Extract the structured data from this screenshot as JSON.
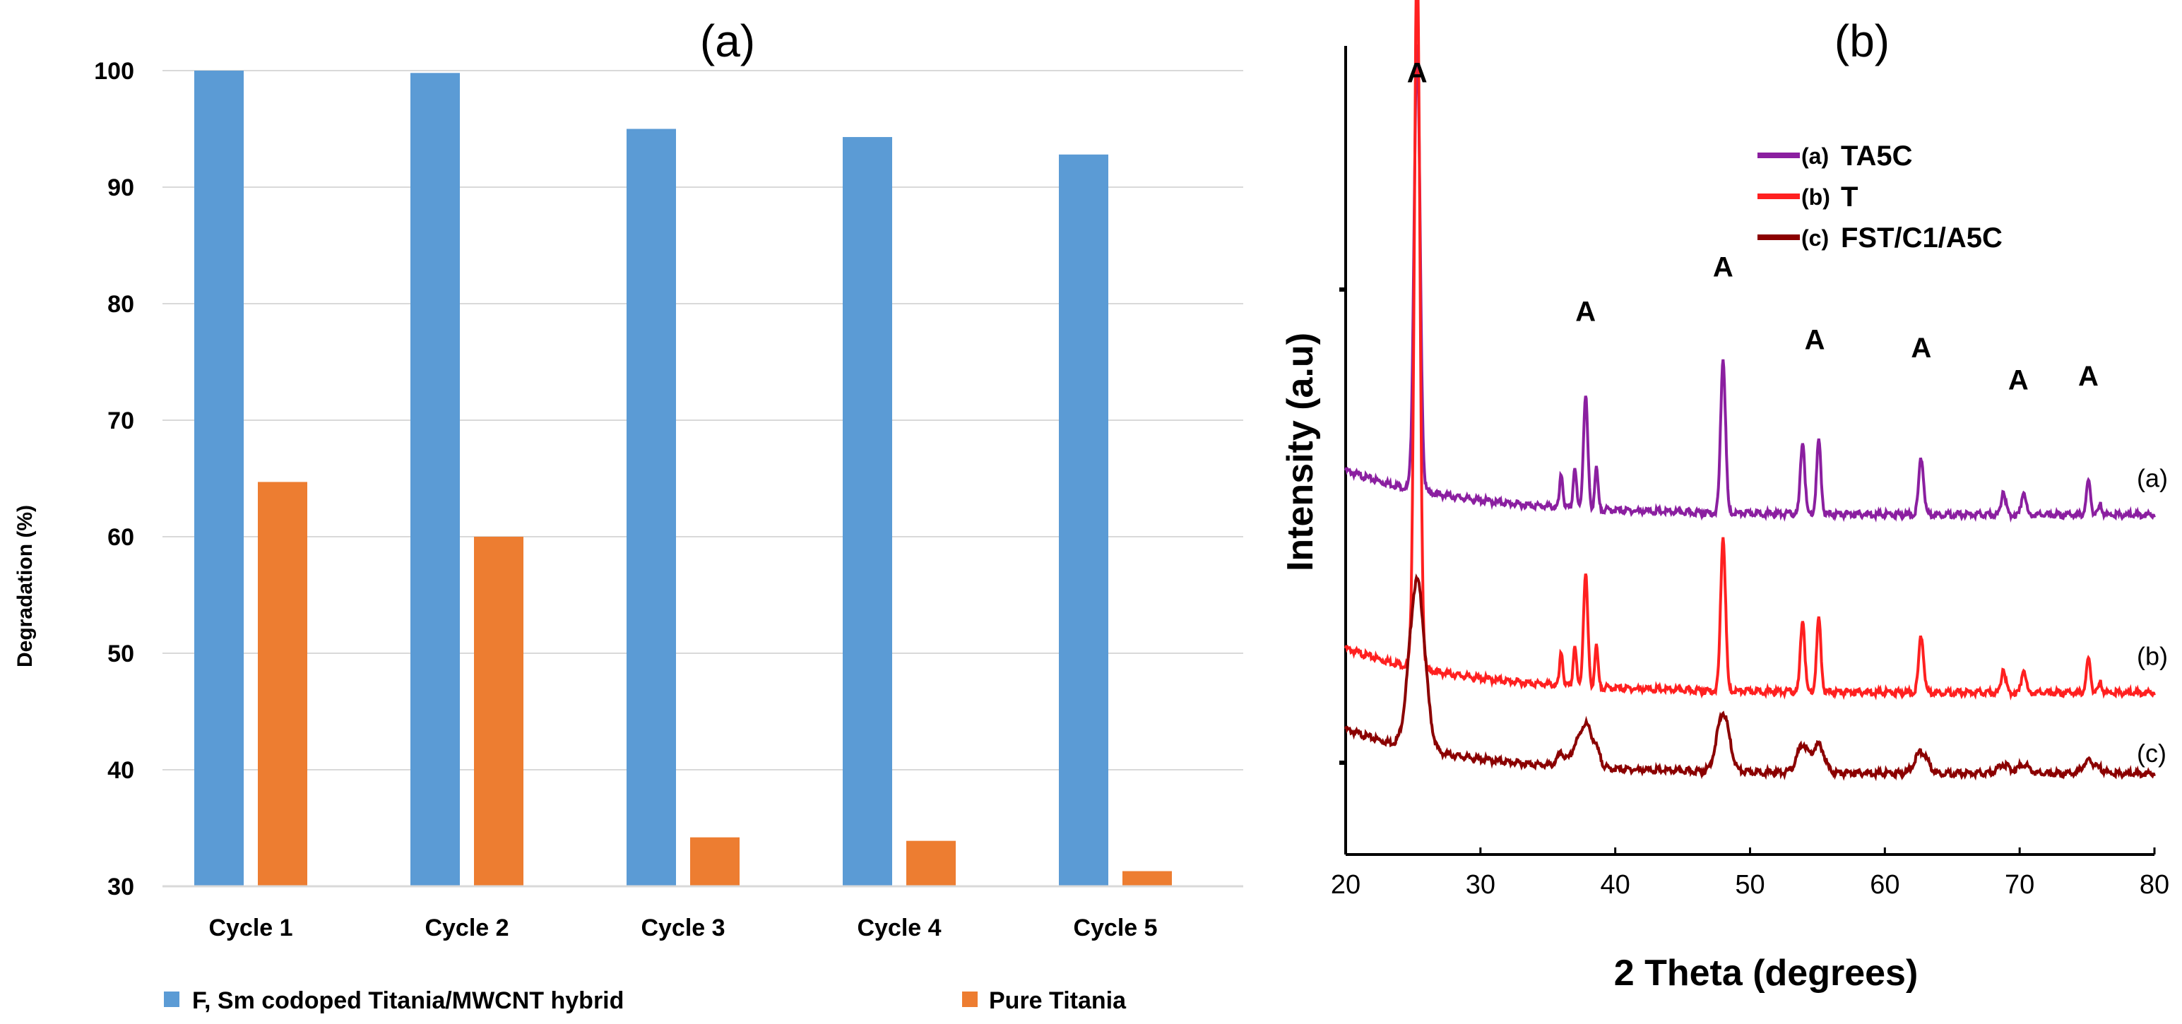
{
  "chart_data": [
    {
      "panel": "(a)",
      "type": "bar",
      "title": "(a)",
      "ylabel": "Degradation (%)",
      "xlabel": "",
      "ylim": [
        30,
        100
      ],
      "yticks": [
        30,
        40,
        50,
        60,
        70,
        80,
        90,
        100
      ],
      "grid": true,
      "legend_position": "bottom",
      "categories": [
        "Cycle 1",
        "Cycle 2",
        "Cycle 3",
        "Cycle 4",
        "Cycle 5"
      ],
      "series": [
        {
          "name": "F, Sm codoped Titania/MWCNT hybrid",
          "color": "#5b9bd5",
          "values": [
            100,
            99.8,
            95,
            94.3,
            92.8
          ]
        },
        {
          "name": "Pure Titania",
          "color": "#ed7d31",
          "values": [
            64.7,
            60,
            34.2,
            33.9,
            31.3
          ]
        }
      ]
    },
    {
      "panel": "(b)",
      "type": "line",
      "title": "(b)",
      "xlabel": "2 Theta (degrees)",
      "ylabel": "Intensity (a.u)",
      "xlim": [
        20,
        80
      ],
      "xticks": [
        20,
        30,
        40,
        50,
        60,
        70,
        80
      ],
      "ylim": [
        0,
        1
      ],
      "legend_position": "top-right",
      "peak_label": "A",
      "peaks": [
        25.3,
        37.8,
        48.0,
        53.9,
        55.1,
        62.7,
        68.8,
        70.3,
        75.1
      ],
      "labeled_peaks": [
        25.3,
        37.8,
        48.0,
        54.8,
        62.7,
        69.9,
        75.1
      ],
      "series": [
        {
          "name": "TA5C",
          "tag": "(a)",
          "end_label": "(a)",
          "color": "#8b1fa0",
          "offset": 0.42,
          "scale": 1.0
        },
        {
          "name": "T",
          "tag": "(b)",
          "end_label": "(b)",
          "color": "#ff2020",
          "offset": 0.2,
          "scale": 1.05
        },
        {
          "name": "FST/C1/A5C",
          "tag": "(c)",
          "end_label": "(c)",
          "color": "#8b0000",
          "offset": 0.1,
          "scale": 0.45
        }
      ]
    }
  ]
}
